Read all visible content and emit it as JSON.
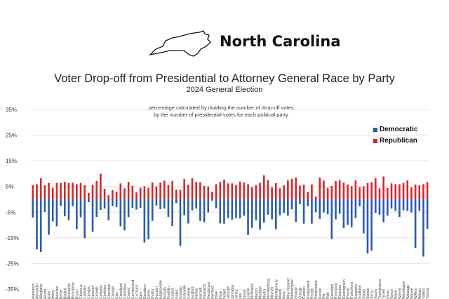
{
  "header": {
    "state": "North Carolina",
    "icon": "nc-state-outline-icon"
  },
  "chart_data": {
    "type": "bar",
    "title": "Voter Drop-off from Presidential to Attorney General Race by Party",
    "subtitle": "2024 General Election",
    "annotation": [
      "percentage calculated by dividing the number of drop-off votes",
      "by the number of presidential votes for each political party"
    ],
    "xlabel": "",
    "ylabel": "",
    "ylim": [
      -35,
      35
    ],
    "yticks": [
      35,
      25,
      15,
      5,
      -5,
      -15,
      -25,
      -35
    ],
    "ytick_labels": [
      "35%",
      "25%",
      "15%",
      "5%",
      "-5%",
      "-15%",
      "-25%",
      "-35%"
    ],
    "grid": true,
    "legend_position": "top-right",
    "categories": [
      "Alamance",
      "Alexander",
      "Alleghany",
      "Anson",
      "Ashe",
      "Avery",
      "Beaufort",
      "Bertie",
      "Bladen",
      "Brunswick",
      "Buncombe",
      "Burke",
      "Cabarrus",
      "Caldwell",
      "Camden",
      "Carteret",
      "Caswell",
      "Catawba",
      "Chatham",
      "Cherokee",
      "Chowan",
      "Clay",
      "Cleveland",
      "Columbus",
      "Craven",
      "Cumberland",
      "Currituck",
      "Dare",
      "Davidson",
      "Davie",
      "Duplin",
      "Durham",
      "Edgecombe",
      "Forsyth",
      "Franklin",
      "Gaston",
      "Gates",
      "Graham",
      "Granville",
      "Greene",
      "Guilford",
      "Halifax",
      "Harnett",
      "Haywood",
      "Henderson",
      "Hertford",
      "Hoke",
      "Hyde",
      "Iredell",
      "Jackson",
      "Johnston",
      "Jones",
      "Lee",
      "Lenoir",
      "Lincoln",
      "McDowell",
      "Macon",
      "Madison",
      "Martin",
      "Mecklenburg",
      "Mitchell",
      "Montgomery",
      "Moore",
      "Nash",
      "New Hanover",
      "Northampton",
      "Onslow",
      "Orange",
      "Pamlico",
      "Pasquotank",
      "Pender",
      "Perquimans",
      "Person",
      "Pitt",
      "Polk",
      "Randolph",
      "Richmond",
      "Robeson",
      "Rockingham",
      "Rowan",
      "Rutherford",
      "Sampson",
      "Scotland",
      "Stanly",
      "Stokes",
      "Surry",
      "Swain",
      "Transylvania",
      "Tyrrell",
      "Union",
      "Vance",
      "Wake",
      "Warren",
      "Washington",
      "Watauga",
      "Wayne",
      "Wilkes",
      "Wilson",
      "Yadkin",
      "Yancey"
    ],
    "series": [
      {
        "name": "Democratic",
        "color": "#2a5caa",
        "values": [
          -7.1,
          -19.5,
          -20.5,
          -4.9,
          -13.8,
          -8.6,
          -10.5,
          -2.5,
          -6.6,
          -8.1,
          -2.7,
          -11.6,
          -7.0,
          -15.1,
          -1.1,
          -12.6,
          -6.9,
          -4.1,
          -3.6,
          -8.2,
          -2.7,
          -3.0,
          -10.5,
          -12.1,
          -6.9,
          -3.3,
          -4.0,
          -3.3,
          -16.8,
          -15.6,
          -8.4,
          -2.4,
          -3.8,
          -3.6,
          -6.9,
          -10.4,
          -1.5,
          -18.2,
          -6.2,
          -9.4,
          -4.3,
          -3.6,
          -8.4,
          -8.9,
          -5.1,
          -0.5,
          -3.5,
          -9.4,
          -9.5,
          -7.3,
          -7.9,
          -7.3,
          -7.4,
          -6.4,
          -13.9,
          -11.1,
          -8.2,
          -11.8,
          -9.1,
          -6.0,
          -7.8,
          -11.6,
          -6.2,
          -5.3,
          -6.4,
          -3.9,
          -8.8,
          -1.9,
          -9.5,
          -2.7,
          -9.5,
          -5.0,
          -7.6,
          -5.1,
          -5.8,
          -15.5,
          -7.8,
          -5.6,
          -11.2,
          -10.0,
          -10.9,
          -7.3,
          -2.7,
          -13.3,
          -21.1,
          -20.0,
          -5.3,
          -6.0,
          -8.9,
          -6.4,
          -3.6,
          -4.5,
          -6.9,
          -4.3,
          -4.5,
          -5.1,
          -18.9,
          -4.5,
          -22.3,
          -11.5
        ]
      },
      {
        "name": "Republican",
        "color": "#d7262b",
        "values": [
          5.6,
          5.9,
          8.2,
          5.5,
          6.4,
          4.5,
          6.4,
          6.4,
          6.8,
          6.4,
          6.5,
          5.9,
          6.4,
          5.5,
          2.5,
          5.7,
          7.1,
          10.0,
          4.1,
          1.6,
          3.6,
          3.0,
          6.2,
          4.3,
          6.8,
          5.2,
          2.7,
          4.5,
          5.1,
          4.5,
          6.6,
          5.0,
          6.5,
          7.3,
          5.6,
          7.1,
          3.8,
          3.7,
          7.9,
          5.7,
          8.2,
          6.8,
          6.7,
          5.2,
          5.0,
          2.9,
          5.9,
          6.8,
          7.7,
          6.2,
          6.2,
          5.6,
          6.9,
          6.5,
          5.9,
          4.7,
          5.5,
          6.4,
          9.4,
          7.5,
          4.7,
          6.3,
          4.3,
          5.4,
          7.4,
          8.0,
          8.5,
          5.3,
          5.7,
          2.9,
          5.8,
          1.1,
          8.5,
          7.3,
          4.5,
          5.2,
          7.1,
          7.5,
          6.5,
          5.8,
          5.1,
          7.4,
          4.7,
          5.1,
          6.3,
          6.7,
          8.2,
          4.3,
          8.9,
          4.4,
          6.2,
          5.9,
          5.9,
          6.4,
          7.4,
          4.7,
          5.8,
          5.5,
          5.9,
          6.7
        ]
      }
    ]
  }
}
